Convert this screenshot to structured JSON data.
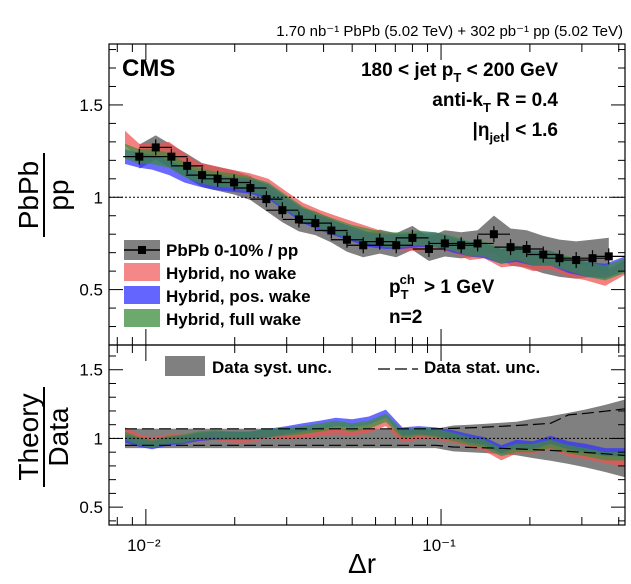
{
  "header_lumi": "1.70 nb⁻¹ PbPb (5.02 TeV) + 302 pb⁻¹ pp (5.02 TeV)",
  "chart_data": [
    {
      "type": "line",
      "panel": "top",
      "experiment": "CMS",
      "ylabel": "PbPb/pp",
      "xscale": "log",
      "xlim": [
        0.0075,
        0.42
      ],
      "ylim": [
        0.2,
        1.83
      ],
      "yticks": [
        "0.5",
        "1",
        "1.5"
      ],
      "reference_line": 1.0,
      "annotations": [
        "180 < jet p_T < 200 GeV",
        "anti-k_T R = 0.4",
        "|η_jet| < 1.6",
        "p_T^ch > 1 GeV",
        "n=2"
      ],
      "legend": [
        "PbPb 0-10% / pp",
        "Hybrid, no wake",
        "Hybrid, pos. wake",
        "Hybrid, full wake"
      ],
      "colors": {
        "data": "#000000",
        "syst": "#808080",
        "no_wake": "#f05050",
        "pos_wake": "#3030ff",
        "full_wake": "#3c8c3c"
      },
      "x": [
        0.0085,
        0.0095,
        0.0105,
        0.012,
        0.0135,
        0.015,
        0.017,
        0.0195,
        0.0225,
        0.026,
        0.03,
        0.034,
        0.039,
        0.044,
        0.05,
        0.057,
        0.065,
        0.074,
        0.084,
        0.096,
        0.11,
        0.125,
        0.14,
        0.16,
        0.18,
        0.205,
        0.235,
        0.27,
        0.31,
        0.36,
        0.42
      ],
      "series": [
        {
          "name": "PbPb 0-10% / pp",
          "x": [
            0.0095,
            0.0108,
            0.0122,
            0.0138,
            0.0155,
            0.0175,
            0.0199,
            0.0226,
            0.0256,
            0.029,
            0.033,
            0.0375,
            0.0425,
            0.048,
            0.0545,
            0.062,
            0.0705,
            0.08,
            0.091,
            0.103,
            0.117,
            0.133,
            0.151,
            0.172,
            0.195,
            0.222,
            0.252,
            0.287,
            0.326,
            0.37
          ],
          "values": [
            1.22,
            1.27,
            1.22,
            1.17,
            1.12,
            1.1,
            1.08,
            1.05,
            0.99,
            0.93,
            0.88,
            0.86,
            0.82,
            0.77,
            0.74,
            0.76,
            0.74,
            0.78,
            0.72,
            0.75,
            0.74,
            0.75,
            0.8,
            0.73,
            0.72,
            0.69,
            0.67,
            0.66,
            0.67,
            0.68
          ]
        },
        {
          "name": "Hybrid, no wake",
          "values": [
            1.32,
            1.25,
            1.25,
            1.26,
            1.2,
            1.15,
            1.13,
            1.11,
            1.09,
            1.06,
            0.99,
            0.93,
            0.89,
            0.86,
            0.83,
            0.8,
            0.77,
            0.75,
            0.75,
            0.76,
            0.74,
            0.7,
            0.71,
            0.66,
            0.67,
            0.64,
            0.65,
            0.61,
            0.59,
            0.56,
            0.62
          ]
        },
        {
          "name": "Hybrid, pos. wake",
          "values": [
            1.22,
            1.2,
            1.19,
            1.16,
            1.12,
            1.1,
            1.08,
            1.07,
            1.06,
            1.03,
            0.96,
            0.9,
            0.86,
            0.83,
            0.8,
            0.77,
            0.76,
            0.76,
            0.77,
            0.77,
            0.74,
            0.72,
            0.71,
            0.68,
            0.69,
            0.67,
            0.67,
            0.63,
            0.61,
            0.6,
            0.64
          ]
        },
        {
          "name": "Hybrid, full wake",
          "values": [
            1.25,
            1.22,
            1.22,
            1.2,
            1.15,
            1.12,
            1.1,
            1.09,
            1.07,
            1.04,
            0.97,
            0.91,
            0.87,
            0.84,
            0.81,
            0.79,
            0.77,
            0.77,
            0.78,
            0.77,
            0.75,
            0.72,
            0.72,
            0.68,
            0.7,
            0.67,
            0.67,
            0.64,
            0.61,
            0.59,
            0.63
          ]
        }
      ]
    },
    {
      "type": "line",
      "panel": "bottom",
      "ylabel": "Theory/Data",
      "xlabel": "Δr",
      "xscale": "log",
      "xlim": [
        0.0075,
        0.42
      ],
      "xticks": [
        "10⁻²",
        "10⁻¹"
      ],
      "ylim": [
        0.37,
        1.68
      ],
      "yticks": [
        "0.5",
        "1",
        "1.5"
      ],
      "reference_line": 1.0,
      "legend": [
        "Data syst. unc.",
        "Data stat. unc."
      ],
      "x": [
        0.0085,
        0.0095,
        0.0105,
        0.012,
        0.0135,
        0.015,
        0.017,
        0.0195,
        0.0225,
        0.026,
        0.03,
        0.034,
        0.039,
        0.044,
        0.05,
        0.057,
        0.065,
        0.074,
        0.084,
        0.096,
        0.11,
        0.125,
        0.14,
        0.16,
        0.18,
        0.205,
        0.235,
        0.27,
        0.31,
        0.36,
        0.42
      ],
      "series": [
        {
          "name": "Hybrid, no wake",
          "values": [
            1.05,
            1.0,
            0.98,
            1.0,
            1.0,
            1.01,
            1.02,
            1.0,
            1.0,
            1.03,
            1.02,
            1.03,
            1.05,
            1.06,
            1.05,
            1.07,
            1.12,
            1.0,
            1.02,
            1.02,
            1.0,
            0.97,
            0.94,
            0.87,
            0.92,
            0.92,
            0.95,
            0.9,
            0.88,
            0.85,
            0.82
          ]
        },
        {
          "name": "Hybrid, pos. wake",
          "values": [
            1.0,
            0.97,
            0.95,
            0.98,
            0.99,
            1.01,
            1.02,
            1.02,
            1.02,
            1.04,
            1.06,
            1.08,
            1.1,
            1.12,
            1.11,
            1.13,
            1.18,
            1.05,
            1.06,
            1.05,
            1.03,
            1.0,
            0.98,
            0.92,
            0.96,
            0.95,
            0.99,
            0.95,
            0.93,
            0.9,
            0.9
          ]
        },
        {
          "name": "Hybrid, full wake",
          "values": [
            1.02,
            0.98,
            0.96,
            0.99,
            1.0,
            1.02,
            1.03,
            1.02,
            1.02,
            1.04,
            1.05,
            1.06,
            1.08,
            1.1,
            1.08,
            1.1,
            1.15,
            1.03,
            1.05,
            1.04,
            1.01,
            0.98,
            0.96,
            0.9,
            0.93,
            0.93,
            0.96,
            0.92,
            0.9,
            0.87,
            0.87
          ]
        }
      ]
    }
  ]
}
